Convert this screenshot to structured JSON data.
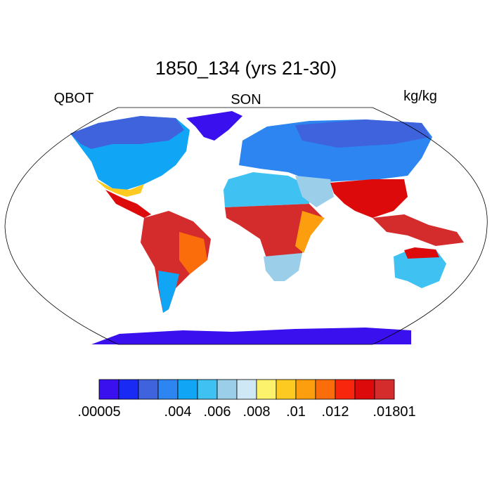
{
  "title": "1850_134 (yrs 21-30)",
  "left_label": "QBOT",
  "center_label": "SON",
  "right_label": "kg/kg",
  "colorbar": {
    "colors": [
      "#3b10ee",
      "#1a2af5",
      "#3f62dd",
      "#2c85f0",
      "#10a6f5",
      "#3fc2f2",
      "#9bcee9",
      "#cfe8f5",
      "#fdf26c",
      "#fdca22",
      "#fc9e0e",
      "#fb6c0a",
      "#f8260c",
      "#dc0a0a",
      "#d42c2c"
    ],
    "labels": [
      ".00005",
      ".004",
      ".006",
      ".008",
      ".01",
      ".012",
      ".01801"
    ]
  }
}
